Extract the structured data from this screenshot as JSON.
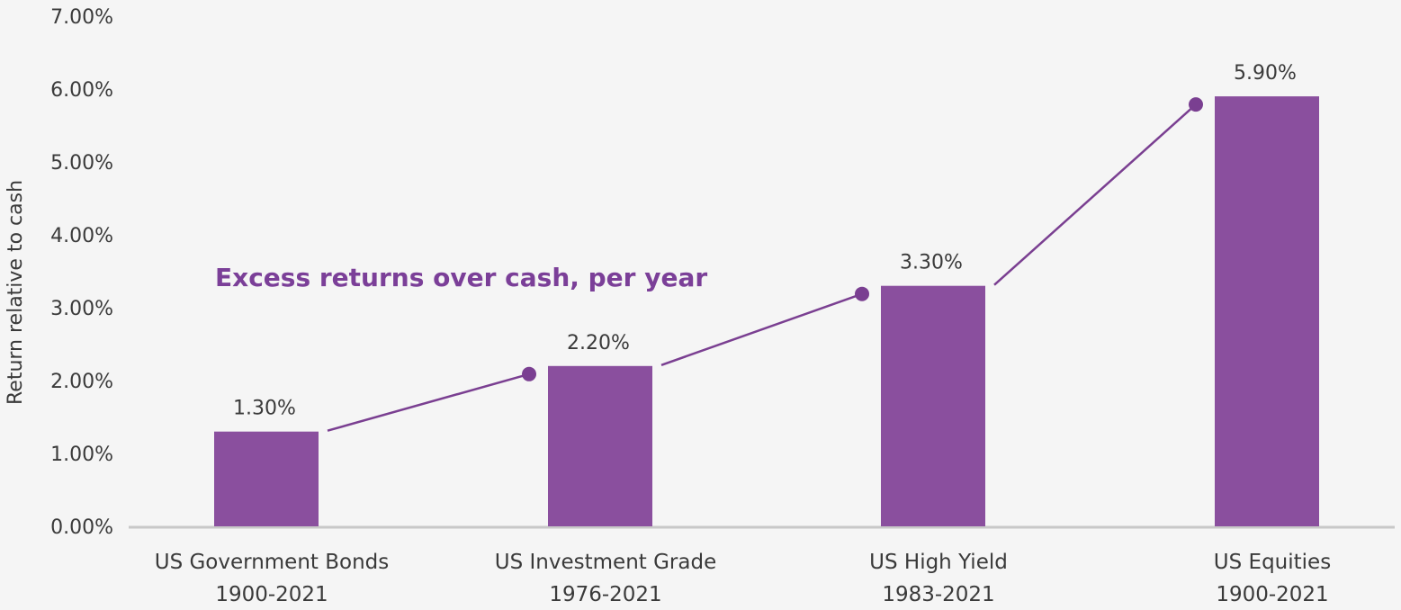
{
  "chart_data": {
    "type": "bar",
    "categories": [
      [
        "US Government Bonds",
        "1900-2021"
      ],
      [
        "US Investment Grade",
        "1976-2021"
      ],
      [
        "US High Yield",
        "1983-2021"
      ],
      [
        "US Equities",
        "1900-2021"
      ]
    ],
    "values": [
      1.3,
      2.2,
      3.3,
      5.9
    ],
    "data_labels": [
      "1.30%",
      "2.20%",
      "3.30%",
      "5.90%"
    ],
    "ylabel": "Return relative to cash",
    "ylim": [
      0,
      7
    ],
    "yticks": [
      "0.00%",
      "1.00%",
      "2.00%",
      "3.00%",
      "4.00%",
      "5.00%",
      "6.00%",
      "7.00%"
    ],
    "annotation": "Excess returns over cash, per year",
    "grid": false,
    "legend": "none",
    "colors": {
      "bar": "#8a4f9e",
      "line": "#7a3f91",
      "annotation": "#7b3f98",
      "axis": "#c8c8c8",
      "text": "#3a3a3a"
    }
  }
}
